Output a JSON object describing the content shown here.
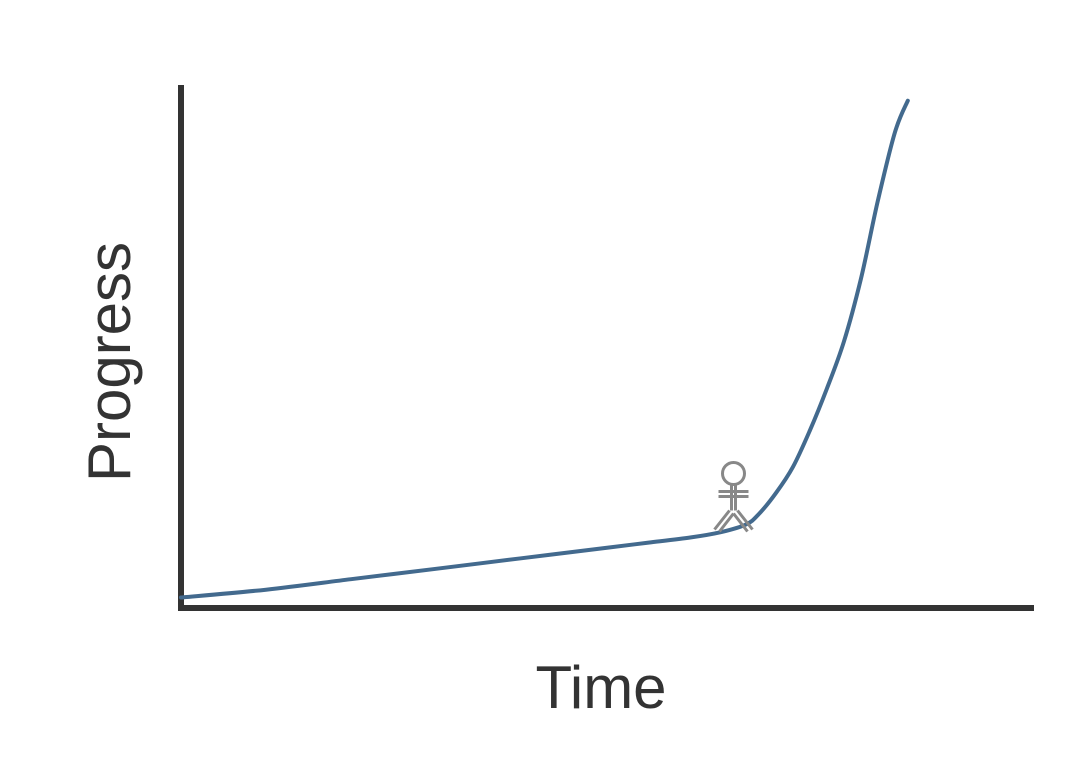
{
  "chart_data": {
    "type": "line",
    "xlabel": "Time",
    "ylabel": "Progress",
    "xlim": [
      0,
      100
    ],
    "ylim": [
      0,
      100
    ],
    "grid": false,
    "legend": "none",
    "series": [
      {
        "color": "#436a8e",
        "x": [
          0,
          10,
          20,
          30,
          40,
          50,
          55,
          60,
          63.5,
          66.5,
          68,
          70,
          72,
          74,
          76,
          78,
          80,
          82,
          84,
          85.5
        ],
        "y": [
          2,
          3.5,
          5.5,
          7.5,
          9.5,
          11.5,
          12.5,
          13.5,
          14.5,
          16,
          18,
          22,
          27,
          34,
          42,
          51,
          63,
          78,
          91,
          97
        ]
      }
    ],
    "annotation": {
      "icon": "stick-figure-icon",
      "x": 65,
      "y": 15,
      "color": "#888888"
    }
  }
}
